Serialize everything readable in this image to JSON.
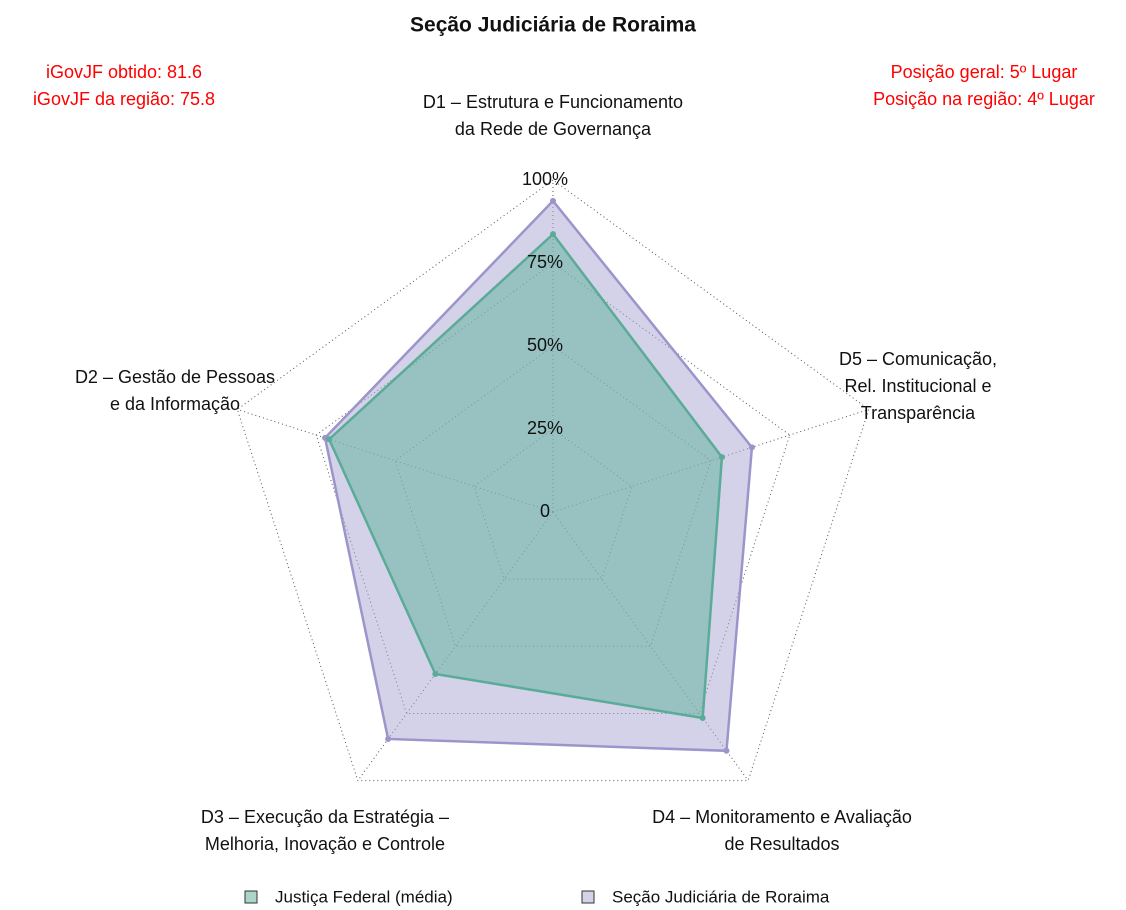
{
  "chart_data": {
    "type": "radar",
    "title": "Seção Judiciária de Roraima",
    "annotations_left": [
      "iGovJF obtido: 81.6",
      "iGovJF da região: 75.8"
    ],
    "annotations_right": [
      "Posição geral: 5º Lugar",
      "Posição na região: 4º Lugar"
    ],
    "categories": [
      [
        "D1 – Estrutura e Funcionamento",
        "da Rede de Governança"
      ],
      [
        "D2 – Gestão de Pessoas",
        "e da Informação"
      ],
      [
        "D3 – Execução da Estratégia –",
        "Melhoria, Inovação e Controle"
      ],
      [
        "D4 – Monitoramento e Avaliação",
        "de Resultados"
      ],
      [
        "D5 – Comunicação,",
        "Rel. Institucional e",
        "Transparência"
      ]
    ],
    "series": [
      {
        "name": "Justiça Federal (média)",
        "color": "#5aab98",
        "fill": "rgba(102,178,160,0.55)",
        "values": [
          83.7,
          70.9,
          60.3,
          76.7,
          53.5
        ]
      },
      {
        "name": "Seção Judiciária de Roraima",
        "color": "#9b95cb",
        "fill": "rgba(170,165,210,0.5)",
        "values": [
          93.7,
          72.2,
          84.5,
          88.9,
          63.0
        ]
      }
    ],
    "rlim": [
      0,
      100
    ],
    "rticks": [
      0,
      {
        "value": 25,
        "label": "25%"
      },
      {
        "value": 50,
        "label": "50%"
      },
      {
        "value": 75,
        "label": "75%"
      },
      {
        "value": 100,
        "label": "100%"
      }
    ],
    "grid": true
  }
}
